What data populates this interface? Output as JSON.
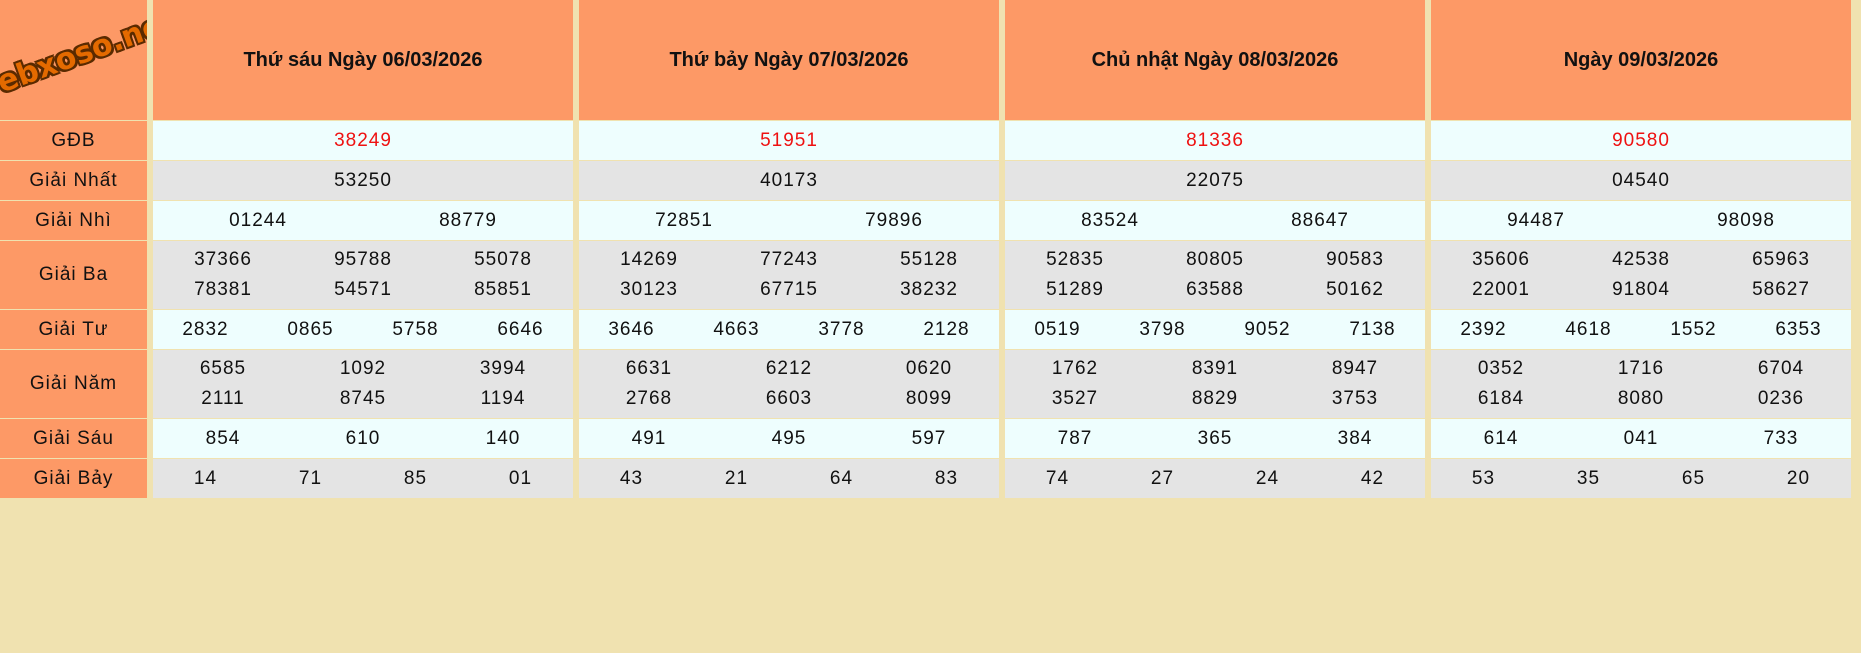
{
  "logo": "webxoso.net",
  "prizes": [
    "GĐB",
    "Giải Nhất",
    "Giải Nhì",
    "Giải Ba",
    "Giải Tư",
    "Giải Năm",
    "Giải Sáu",
    "Giải Bảy"
  ],
  "days": [
    {
      "title": "Thứ sáu Ngày 06/03/2026",
      "results": [
        [
          "38249"
        ],
        [
          "53250"
        ],
        [
          "01244",
          "88779"
        ],
        [
          "37366",
          "95788",
          "55078",
          "78381",
          "54571",
          "85851"
        ],
        [
          "2832",
          "0865",
          "5758",
          "6646"
        ],
        [
          "6585",
          "1092",
          "3994",
          "2111",
          "8745",
          "1194"
        ],
        [
          "854",
          "610",
          "140"
        ],
        [
          "14",
          "71",
          "85",
          "01"
        ]
      ]
    },
    {
      "title": "Thứ bảy Ngày 07/03/2026",
      "results": [
        [
          "51951"
        ],
        [
          "40173"
        ],
        [
          "72851",
          "79896"
        ],
        [
          "14269",
          "77243",
          "55128",
          "30123",
          "67715",
          "38232"
        ],
        [
          "3646",
          "4663",
          "3778",
          "2128"
        ],
        [
          "6631",
          "6212",
          "0620",
          "2768",
          "6603",
          "8099"
        ],
        [
          "491",
          "495",
          "597"
        ],
        [
          "43",
          "21",
          "64",
          "83"
        ]
      ]
    },
    {
      "title": "Chủ nhật Ngày 08/03/2026",
      "results": [
        [
          "81336"
        ],
        [
          "22075"
        ],
        [
          "83524",
          "88647"
        ],
        [
          "52835",
          "80805",
          "90583",
          "51289",
          "63588",
          "50162"
        ],
        [
          "0519",
          "3798",
          "9052",
          "7138"
        ],
        [
          "1762",
          "8391",
          "8947",
          "3527",
          "8829",
          "3753"
        ],
        [
          "787",
          "365",
          "384"
        ],
        [
          "74",
          "27",
          "24",
          "42"
        ]
      ]
    },
    {
      "title": "Ngày 09/03/2026",
      "results": [
        [
          "90580"
        ],
        [
          "04540"
        ],
        [
          "94487",
          "98098"
        ],
        [
          "35606",
          "42538",
          "65963",
          "22001",
          "91804",
          "58627"
        ],
        [
          "2392",
          "4618",
          "1552",
          "6353"
        ],
        [
          "0352",
          "1716",
          "6704",
          "6184",
          "8080",
          "0236"
        ],
        [
          "614",
          "041",
          "733"
        ],
        [
          "53",
          "35",
          "65",
          "20"
        ]
      ]
    }
  ],
  "colors": {
    "header_bg": "#fd9966",
    "special_prize_text": "#ee1111",
    "row_light": "#eefefe",
    "row_gray": "#e4e4e4",
    "page_bg": "#f0e2b0"
  }
}
